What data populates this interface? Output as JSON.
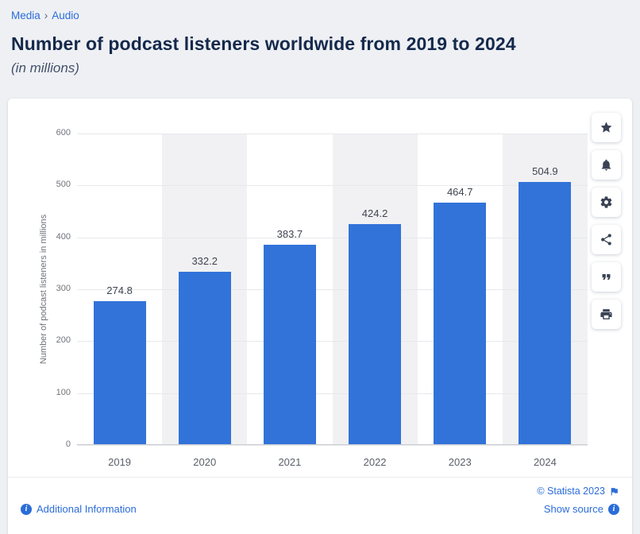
{
  "breadcrumb": {
    "items": [
      {
        "label": "Media"
      },
      {
        "label": "Audio"
      }
    ],
    "separator": "›"
  },
  "header": {
    "title": "Number of podcast listeners worldwide from 2019 to 2024",
    "subtitle": "(in millions)"
  },
  "chart_data": {
    "type": "bar",
    "categories": [
      "2019",
      "2020",
      "2021",
      "2022",
      "2023",
      "2024"
    ],
    "values": [
      274.8,
      332.2,
      383.7,
      424.2,
      464.7,
      504.9
    ],
    "title": "",
    "xlabel": "",
    "ylabel": "Number of podcast listeners in millions",
    "ylim": [
      0,
      600
    ],
    "ytick_interval": 100,
    "grid": true,
    "legend": false,
    "bar_color": "#3273d9",
    "plot_band_color": "#f1f1f3"
  },
  "toolbar": {
    "buttons": [
      {
        "name": "favorite",
        "icon": "star-icon"
      },
      {
        "name": "alert",
        "icon": "bell-icon"
      },
      {
        "name": "settings",
        "icon": "gear-icon"
      },
      {
        "name": "share",
        "icon": "share-icon"
      },
      {
        "name": "cite",
        "icon": "quote-icon"
      },
      {
        "name": "print",
        "icon": "print-icon"
      }
    ]
  },
  "footer": {
    "additional_information": "Additional Information",
    "copyright": "© Statista 2023",
    "show_source": "Show source"
  },
  "colors": {
    "accent_blue": "#2b6cd9",
    "title_navy": "#15294b",
    "bar_blue": "#3273d9",
    "page_bg": "#eef0f4"
  }
}
